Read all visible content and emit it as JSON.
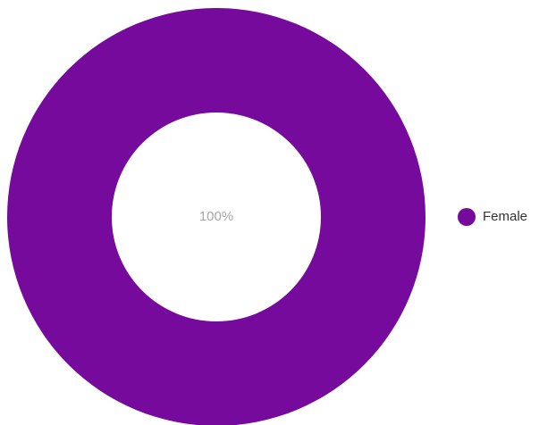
{
  "chart_data": {
    "type": "pie",
    "categories": [
      "Female"
    ],
    "values": [
      100
    ],
    "value_labels": [
      "100%"
    ],
    "colors": [
      "#760a9c"
    ],
    "legend": "right"
  }
}
